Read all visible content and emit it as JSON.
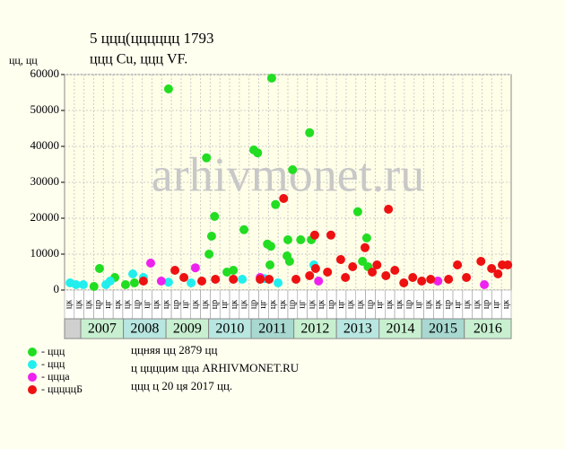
{
  "chart_data": {
    "type": "scatter",
    "title": "5 ццц(цццццц 1793",
    "subtitle": "ццц Cu, ццц VF.",
    "y_label": "цц, цц",
    "watermark": "arhivmonet.ru",
    "xlim": [
      2006.62,
      2017.1
    ],
    "ylim": [
      0,
      60000
    ],
    "yticks": [
      0,
      10000,
      20000,
      30000,
      40000,
      50000,
      60000
    ],
    "grid": true,
    "background": "#ffffe8",
    "x_sublabels": [
      "цк",
      "цк",
      "цк",
      "цр",
      "цг",
      "цк",
      "цк",
      "цр",
      "цг",
      "цк",
      "цк",
      "цр",
      "цг",
      "цк",
      "цк",
      "цр",
      "цг",
      "цк",
      "цк",
      "цр",
      "цг",
      "цк",
      "цк",
      "цр",
      "цг",
      "цк",
      "цк",
      "цр",
      "цг",
      "цк",
      "цк",
      "цр",
      "цг",
      "цк",
      "цк",
      "цр",
      "цг",
      "цк",
      "цк",
      "цр",
      "цг",
      "цк",
      "цк",
      "цр",
      "цг",
      "цк"
    ],
    "year_bands": [
      "2007",
      "2008",
      "2009",
      "2010",
      "2011",
      "2012",
      "2013",
      "2014",
      "2015",
      "2016"
    ],
    "band_colors": [
      "#c8f0d0",
      "#b8e6e0",
      "#c8f0d0",
      "#b8e6e0",
      "#a8d8d0",
      "#c8f0d0",
      "#b8e6e0",
      "#c8f0d0",
      "#a8d8d0",
      "#c8f0d0"
    ],
    "series": [
      {
        "name": "- ццц",
        "color": "#22dd22",
        "x": [
          2009.06,
          2011.48,
          2009.95,
          2010.14,
          2010.07,
          2010.01,
          2010.83,
          2011.06,
          2011.15,
          2011.38,
          2011.46,
          2011.44,
          2011.57,
          2011.97,
          2012.37,
          2011.86,
          2012.16,
          2012.41,
          2013.5,
          2013.71,
          2011.84,
          2011.9,
          2007.44,
          2007.8,
          2010.43,
          2010.58,
          2008.26,
          2008.05,
          2007.31,
          2013.74,
          2013.61
        ],
        "values": [
          56000,
          59000,
          36800,
          20500,
          15000,
          10000,
          16800,
          39000,
          38200,
          12800,
          12200,
          7000,
          23800,
          33500,
          43800,
          14000,
          14000,
          14000,
          21800,
          14500,
          9500,
          8000,
          6000,
          3500,
          5000,
          5500,
          2000,
          1500,
          1000,
          6500,
          8000
        ]
      },
      {
        "name": "- ццц",
        "color": "#22eeee",
        "x": [
          2006.75,
          2006.89,
          2007.06,
          2007.59,
          2007.69,
          2008.22,
          2008.47,
          2009.06,
          2009.59,
          2011.31,
          2012.47,
          2011.63,
          2010.79
        ],
        "values": [
          2000,
          1500,
          1500,
          1500,
          2500,
          4500,
          3500,
          2200,
          2000,
          3200,
          7000,
          2000,
          3000
        ]
      },
      {
        "name": "- ццца",
        "color": "#ee22ee",
        "x": [
          2008.64,
          2009.69,
          2008.89,
          2011.21,
          2012.58,
          2015.38,
          2016.47
        ],
        "values": [
          7500,
          6200,
          2500,
          3500,
          2500,
          2500,
          1500
        ]
      },
      {
        "name": "- цццццБ",
        "color": "#ee1111",
        "x": [
          2011.76,
          2014.22,
          2012.49,
          2012.87,
          2013.67,
          2013.1,
          2009.21,
          2008.47,
          2010.16,
          2011.21,
          2012.37,
          2012.51,
          2013.38,
          2013.95,
          2014.37,
          2014.79,
          2015.21,
          2015.63,
          2015.84,
          2016.39,
          2016.64,
          2016.89,
          2017.02,
          2016.05,
          2016.79,
          2015.0,
          2014.58,
          2014.16,
          2013.84,
          2013.21,
          2012.79,
          2012.05,
          2011.42,
          2010.58,
          2009.84,
          2009.42
        ],
        "values": [
          25500,
          22500,
          15300,
          15300,
          11800,
          8500,
          5500,
          2500,
          3000,
          3000,
          4000,
          6000,
          6500,
          7000,
          5500,
          3500,
          3000,
          3000,
          7000,
          8000,
          6000,
          7000,
          7000,
          3500,
          4500,
          2500,
          2000,
          4000,
          5000,
          3500,
          5000,
          3000,
          3000,
          3000,
          2500,
          3500
        ]
      }
    ],
    "footer": [
      "ццняя цц 2879 цц",
      "ц ццццим цца ARHIVMONET.RU",
      "ццц ц 20 ця 2017 цц."
    ]
  }
}
